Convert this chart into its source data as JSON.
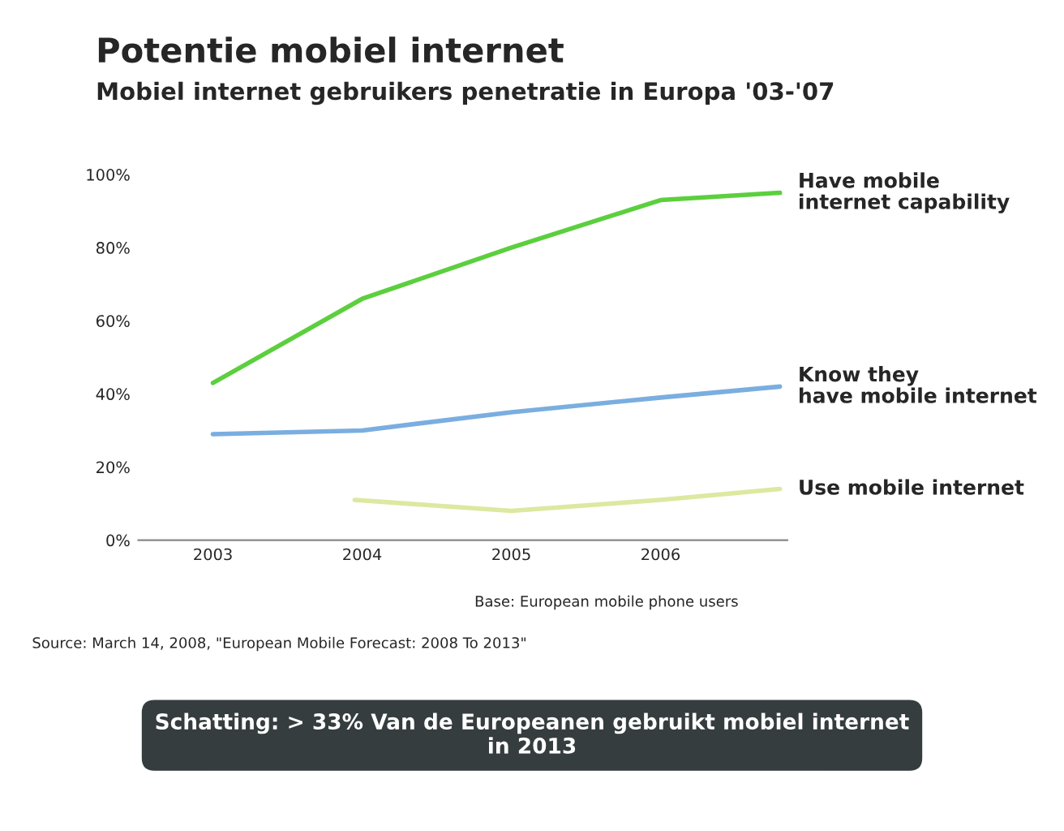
{
  "chart_data": {
    "type": "line",
    "title": "Potentie mobiel internet",
    "subtitle": "Mobiel internet gebruikers penetratie in Europa '03-'07",
    "xlim": [
      2002.5,
      2006.85
    ],
    "xticks": [
      2003,
      2004,
      2005,
      2006
    ],
    "ylim": [
      0,
      100
    ],
    "yticks": [
      {
        "value": 0,
        "label": "0%"
      },
      {
        "value": 20,
        "label": "20%"
      },
      {
        "value": 40,
        "label": "40%"
      },
      {
        "value": 60,
        "label": "60%"
      },
      {
        "value": 80,
        "label": "80%"
      },
      {
        "value": 100,
        "label": "100%"
      }
    ],
    "grid": false,
    "legend": false,
    "marker": "none",
    "line_style": "solid",
    "series": [
      {
        "name": "Have mobile internet capability",
        "color": "#5ccf3e",
        "x": [
          2003,
          2004,
          2005,
          2006,
          2006.8
        ],
        "values": [
          43,
          66,
          80,
          93,
          95
        ]
      },
      {
        "name": "Know they have mobile internet",
        "color": "#7aaee0",
        "x": [
          2003,
          2004,
          2005,
          2006,
          2006.8
        ],
        "values": [
          29,
          30,
          35,
          39,
          42
        ]
      },
      {
        "name": "Use mobile internet",
        "color": "#dde8a0",
        "x": [
          2003.95,
          2005,
          2006,
          2006.8
        ],
        "values": [
          11,
          8,
          11,
          14
        ]
      }
    ],
    "annotations": [
      "Base: European mobile phone users",
      "Source: March 14, 2008, \"European Mobile Forecast: 2008 To 2013\"",
      "Schatting: > 33% Van de Europeanen gebruikt mobiel internet in 2013"
    ]
  }
}
